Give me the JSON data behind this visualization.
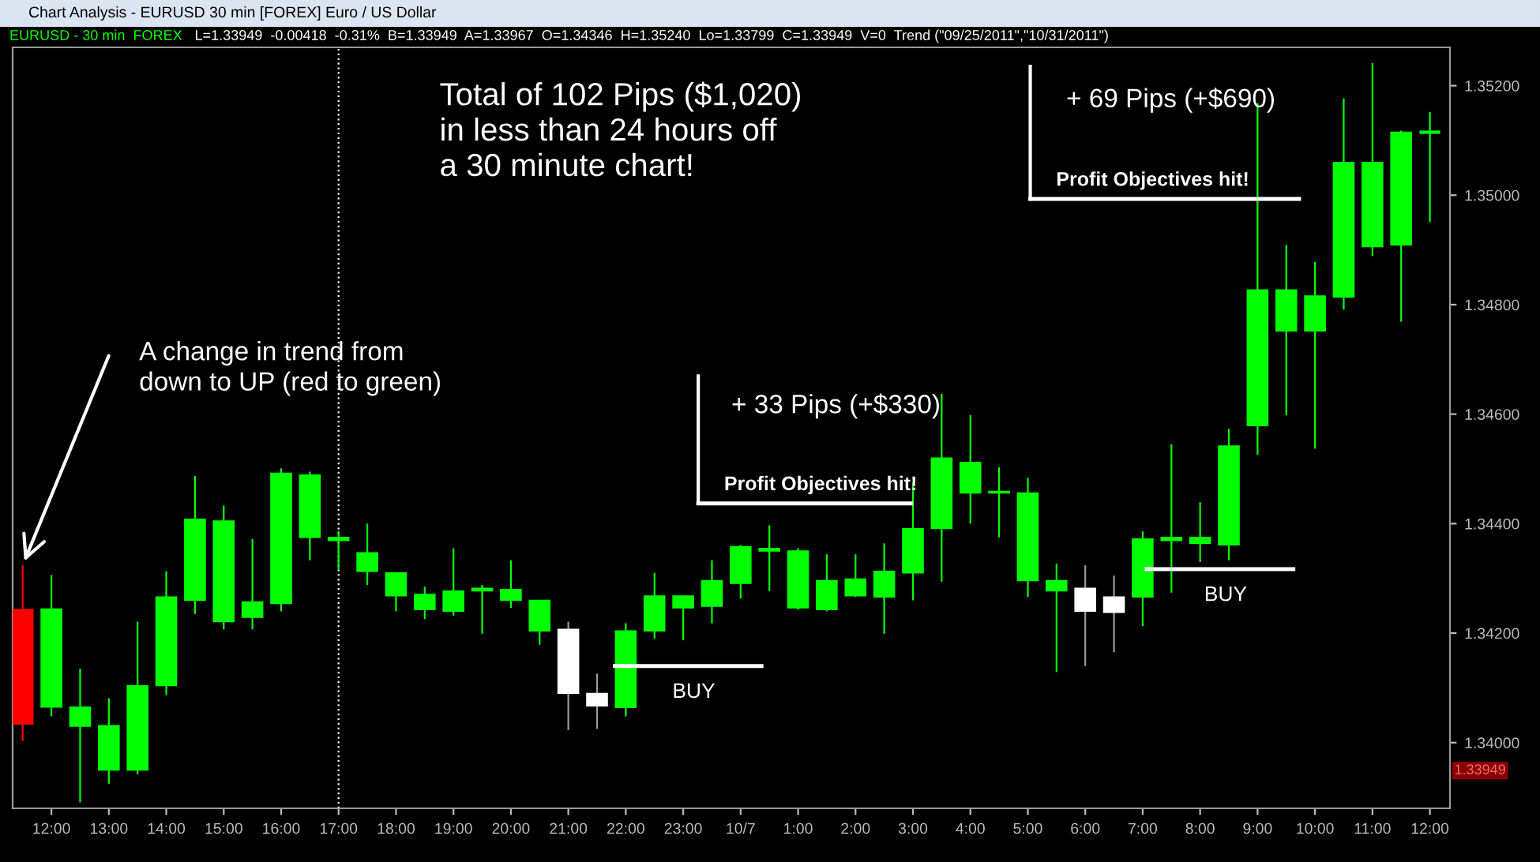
{
  "chart_data": {
    "type": "candlestick",
    "title": "Chart Analysis - EURUSD 30 min [FOREX] Euro / US Dollar",
    "categories": [
      null,
      "12:00",
      null,
      "13:00",
      null,
      "14:00",
      null,
      "15:00",
      null,
      "16:00",
      null,
      "17:00",
      null,
      "18:00",
      null,
      "19:00",
      null,
      "20:00",
      null,
      "21:00",
      null,
      "22:00",
      null,
      "23:00",
      null,
      "10/7",
      null,
      "1:00",
      null,
      "2:00",
      null,
      "3:00",
      null,
      "4:00",
      null,
      "5:00",
      null,
      "6:00",
      null,
      "7:00",
      null,
      "8:00",
      null,
      "9:00",
      null,
      "10:00",
      null,
      "11:00",
      null,
      "12:00"
    ],
    "ohlc": [
      [
        1.34243,
        1.34324,
        1.34003,
        1.34034
      ],
      [
        1.34065,
        1.34306,
        1.34048,
        1.34244
      ],
      [
        1.3403,
        1.34135,
        1.33891,
        1.34065
      ],
      [
        1.3395,
        1.34081,
        1.33925,
        1.34031
      ],
      [
        1.3395,
        1.34221,
        1.33942,
        1.34104
      ],
      [
        1.34104,
        1.34313,
        1.34087,
        1.34266
      ],
      [
        1.3426,
        1.34487,
        1.34235,
        1.34408
      ],
      [
        1.34221,
        1.34433,
        1.34207,
        1.34405
      ],
      [
        1.34229,
        1.34372,
        1.34207,
        1.34257
      ],
      [
        1.34254,
        1.34501,
        1.3424,
        1.34492
      ],
      [
        1.34375,
        1.34495,
        1.34333,
        1.34489
      ],
      [
        1.34369,
        1.34386,
        1.34316,
        1.34375
      ],
      [
        1.34313,
        1.344,
        1.34288,
        1.34347
      ],
      [
        1.34268,
        1.3431,
        1.3424,
        1.3431
      ],
      [
        1.34243,
        1.34285,
        1.34226,
        1.34271
      ],
      [
        1.3424,
        1.34355,
        1.34232,
        1.34277
      ],
      [
        1.34277,
        1.34288,
        1.34199,
        1.34282
      ],
      [
        1.3426,
        1.34333,
        1.34246,
        1.3428
      ],
      [
        1.34204,
        1.3426,
        1.34179,
        1.3426
      ],
      [
        1.34207,
        1.34221,
        1.34023,
        1.3409
      ],
      [
        1.3409,
        1.34126,
        1.34025,
        1.34067
      ],
      [
        1.34064,
        1.34218,
        1.34048,
        1.34204
      ],
      [
        1.34204,
        1.3431,
        1.3419,
        1.34268
      ],
      [
        1.34246,
        1.34268,
        1.34187,
        1.34268
      ],
      [
        1.34249,
        1.34333,
        1.34218,
        1.34296
      ],
      [
        1.34291,
        1.34361,
        1.34263,
        1.34358
      ],
      [
        1.3435,
        1.34397,
        1.34277,
        1.34355
      ],
      [
        1.34246,
        1.34355,
        1.34243,
        1.3435
      ],
      [
        1.34243,
        1.34344,
        1.3424,
        1.34296
      ],
      [
        1.34268,
        1.34344,
        1.34266,
        1.34299
      ],
      [
        1.34266,
        1.34364,
        1.34199,
        1.34313
      ],
      [
        1.3431,
        1.34475,
        1.3426,
        1.34391
      ],
      [
        1.34391,
        1.34637,
        1.34294,
        1.3452
      ],
      [
        1.34456,
        1.34598,
        1.344,
        1.34512
      ],
      [
        1.34456,
        1.34503,
        1.34375,
        1.34459
      ],
      [
        1.34296,
        1.34484,
        1.34266,
        1.34456
      ],
      [
        1.34277,
        1.34327,
        1.34129,
        1.34296
      ],
      [
        1.34282,
        1.34324,
        1.3414,
        1.3424
      ],
      [
        1.34266,
        1.34305,
        1.34165,
        1.34238
      ],
      [
        1.34266,
        1.34386,
        1.34213,
        1.34372
      ],
      [
        1.34369,
        1.34545,
        1.34274,
        1.34375
      ],
      [
        1.34364,
        1.34439,
        1.3433,
        1.34375
      ],
      [
        1.34361,
        1.34573,
        1.34333,
        1.34542
      ],
      [
        1.34579,
        1.35168,
        1.34526,
        1.34827
      ],
      [
        1.34752,
        1.34909,
        1.34598,
        1.34827
      ],
      [
        1.34752,
        1.34878,
        1.34537,
        1.34816
      ],
      [
        1.34814,
        1.35177,
        1.34791,
        1.3506
      ],
      [
        1.34906,
        1.35241,
        1.34889,
        1.3506
      ],
      [
        1.34909,
        1.35118,
        1.34769,
        1.35115
      ],
      [
        1.35115,
        1.35152,
        1.34951,
        1.35115
      ]
    ],
    "colors": [
      "#ff0000",
      "#00ff00",
      "#00ff00",
      "#00ff00",
      "#00ff00",
      "#00ff00",
      "#00ff00",
      "#00ff00",
      "#00ff00",
      "#00ff00",
      "#00ff00",
      "#00ff00",
      "#00ff00",
      "#00ff00",
      "#00ff00",
      "#00ff00",
      "#00ff00",
      "#00ff00",
      "#00ff00",
      "#ffffff",
      "#ffffff",
      "#00ff00",
      "#00ff00",
      "#00ff00",
      "#00ff00",
      "#00ff00",
      "#00ff00",
      "#00ff00",
      "#00ff00",
      "#00ff00",
      "#00ff00",
      "#00ff00",
      "#00ff00",
      "#00ff00",
      "#00ff00",
      "#00ff00",
      "#00ff00",
      "#ffffff",
      "#ffffff",
      "#00ff00",
      "#00ff00",
      "#00ff00",
      "#00ff00",
      "#00ff00",
      "#00ff00",
      "#00ff00",
      "#00ff00",
      "#00ff00",
      "#00ff00",
      "#00ff00"
    ],
    "ylim": [
      1.3388,
      1.3527
    ],
    "yticks": [
      {
        "value": 1.34,
        "label": "1.34000"
      },
      {
        "value": 1.342,
        "label": "1.34200"
      },
      {
        "value": 1.344,
        "label": "1.34400"
      },
      {
        "value": 1.346,
        "label": "1.34600"
      },
      {
        "value": 1.348,
        "label": "1.34800"
      },
      {
        "value": 1.35,
        "label": "1.35000"
      },
      {
        "value": 1.352,
        "label": "1.35200"
      }
    ],
    "ref_lines": [
      {
        "axis": "x",
        "value": "17:00",
        "color": "#ffffff",
        "line_style": "dotted"
      },
      {
        "axis": "y",
        "value": 1.34437,
        "label": "Profit Objectives hit!",
        "color": "#ffffff"
      },
      {
        "axis": "y",
        "value": 1.34993,
        "label": "Profit Objectives hit!",
        "color": "#ffffff"
      },
      {
        "axis": "y",
        "value": 1.3414,
        "label": "BUY",
        "color": "#ffffff"
      },
      {
        "axis": "y",
        "value": 1.34317,
        "label": "BUY",
        "color": "#ffffff"
      }
    ],
    "annotations": [
      "EURUSD - 30 min  FOREX",
      "L=1.33949  -0.00418  -0.31%  B=1.33949  A=1.33967  O=1.34346  H=1.35240  Lo=1.33799  C=1.33949  V=0  Trend (\"09/25/2011\",\"10/31/2011\")",
      "Total of 102 Pips ($1,020)\nin less than 24 hours off\na 30 minute chart!",
      "A change in trend from\ndown to UP (red to green)",
      "+ 33 Pips (+$330)",
      "+ 69 Pips (+$690)",
      {
        "text": "1.33949",
        "y": 1.33949
      }
    ]
  }
}
